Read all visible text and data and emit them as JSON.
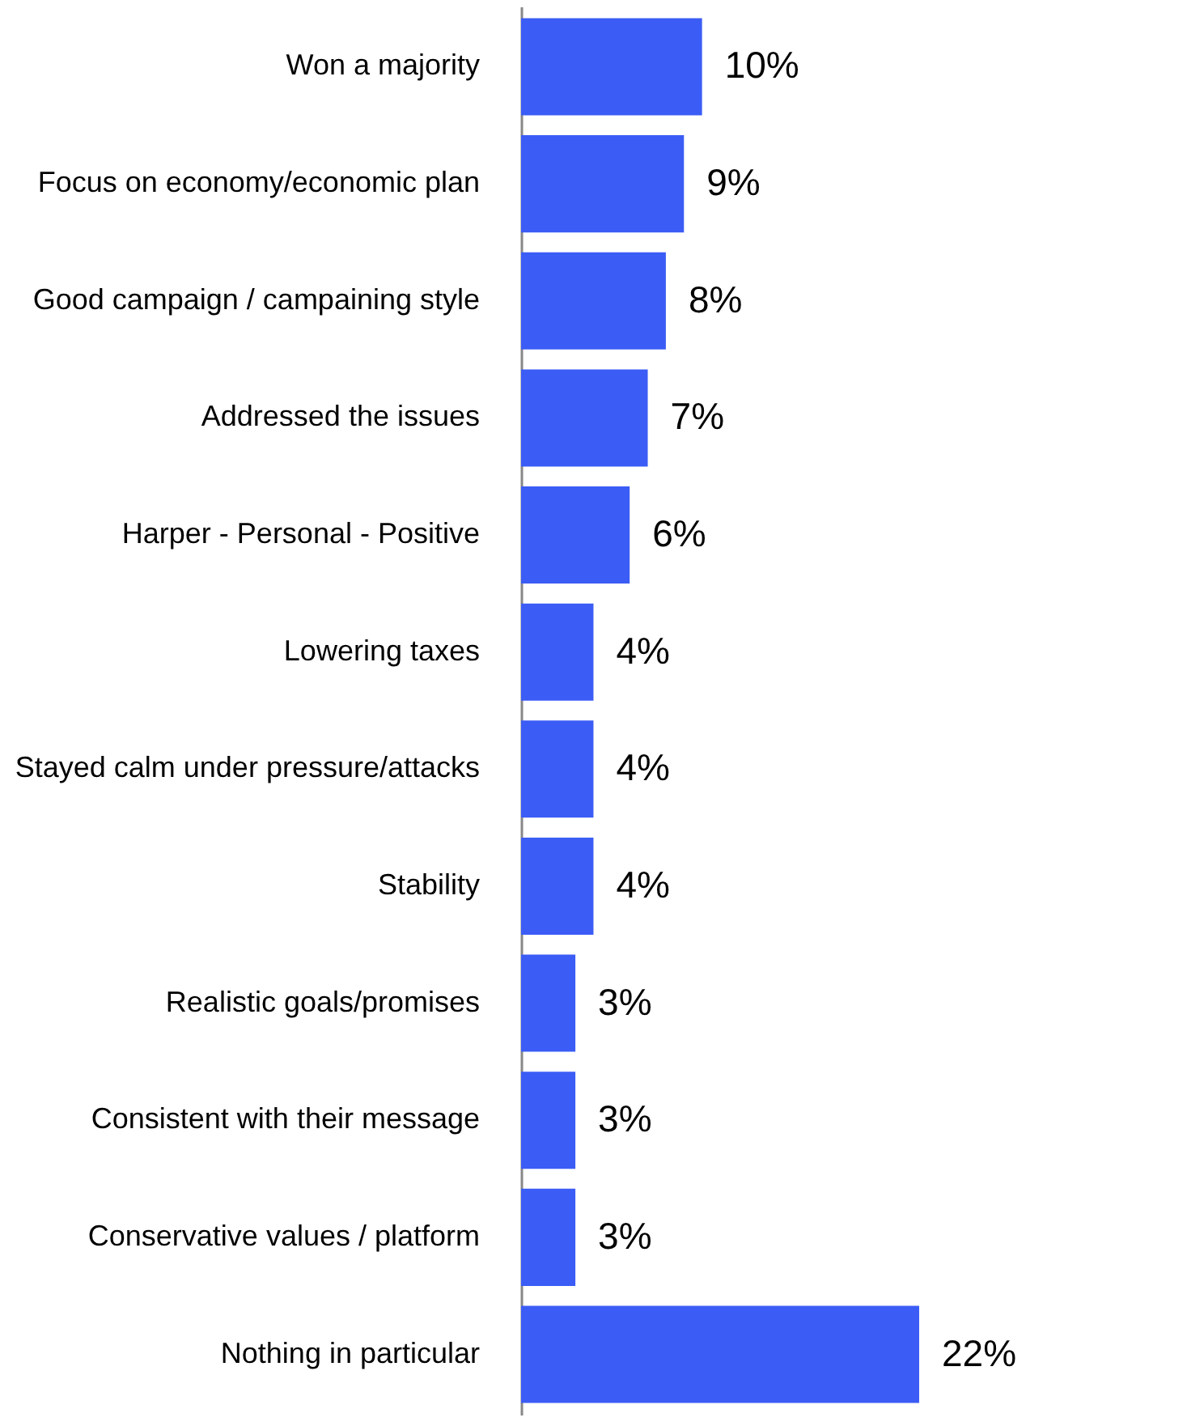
{
  "chart_data": {
    "type": "bar",
    "orientation": "horizontal",
    "categories": [
      "Won a majority",
      "Focus on economy/economic plan",
      "Good campaign  / campaining  style",
      "Addressed the issues",
      "Harper - Personal - Positive",
      "Lowering taxes",
      "Stayed calm under pressure/attacks",
      "Stability",
      "Realistic goals/promises",
      "Consistent with their message",
      "Conservative values / platform",
      "Nothing in particular"
    ],
    "values": [
      10,
      9,
      8,
      7,
      6,
      4,
      4,
      4,
      3,
      3,
      3,
      22
    ],
    "value_labels": [
      "10%",
      "9%",
      "8%",
      "7%",
      "6%",
      "4%",
      "4%",
      "4%",
      "3%",
      "3%",
      "3%",
      "22%"
    ],
    "color": "#3b5cf5",
    "xlim": [
      0,
      22
    ],
    "tick_labels": "y"
  }
}
